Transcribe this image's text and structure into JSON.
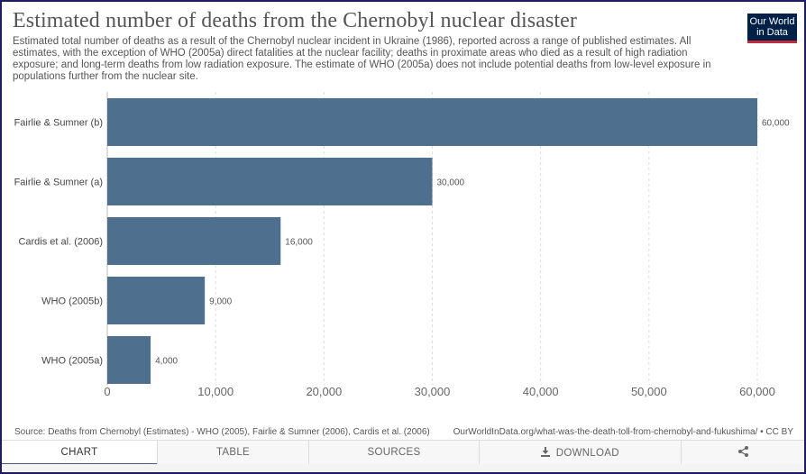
{
  "header": {
    "title": "Estimated number of deaths from the Chernobyl nuclear disaster",
    "subtitle": "Estimated total number of deaths as a result of the Chernobyl nuclear incident in Ukraine (1986), reported across a range of published estimates. All estimates, with the exception of WHO (2005a) direct fatalities at the nuclear facility; deaths in proximate areas who died as a result of high radiation exposure; and long-term deaths from low radiation exposure. The estimate of WHO (2005a) does not include potential deaths from low-level exposure in populations further from the nuclear site.",
    "logo_line1": "Our World",
    "logo_line2": "in Data"
  },
  "colors": {
    "bar": "#4e6f8d",
    "logo_bg": "#002147",
    "logo_accent": "#be2e3e",
    "frame": "#1e1b5e"
  },
  "chart_data": {
    "type": "bar",
    "orientation": "horizontal",
    "title": "Estimated number of deaths from the Chernobyl nuclear disaster",
    "categories": [
      "Fairlie & Sumner (b)",
      "Fairlie & Sumner (a)",
      "Cardis et al. (2006)",
      "WHO (2005b)",
      "WHO (2005a)"
    ],
    "values": [
      60000,
      30000,
      16000,
      9000,
      4000
    ],
    "value_labels": [
      "60,000",
      "30,000",
      "16,000",
      "9,000",
      "4,000"
    ],
    "xlabel": "",
    "ylabel": "",
    "xlim": [
      0,
      60000
    ],
    "xticks": [
      0,
      10000,
      20000,
      30000,
      40000,
      50000,
      60000
    ],
    "xtick_labels": [
      "0",
      "10,000",
      "20,000",
      "30,000",
      "40,000",
      "50,000",
      "60,000"
    ],
    "grid": true,
    "legend": "none"
  },
  "footer": {
    "source": "Source: Deaths from Chernobyl (Estimates) - WHO (2005), Fairlie & Sumner (2006), Cardis et al. (2006)",
    "url": "OurWorldInData.org/what-was-the-death-toll-from-chernobyl-and-fukushima/ • CC BY"
  },
  "tabs": [
    {
      "label": "CHART",
      "icon": ""
    },
    {
      "label": "TABLE",
      "icon": ""
    },
    {
      "label": "SOURCES",
      "icon": ""
    },
    {
      "label": "DOWNLOAD",
      "icon": "download-icon"
    },
    {
      "label": "",
      "icon": "share-icon"
    }
  ]
}
